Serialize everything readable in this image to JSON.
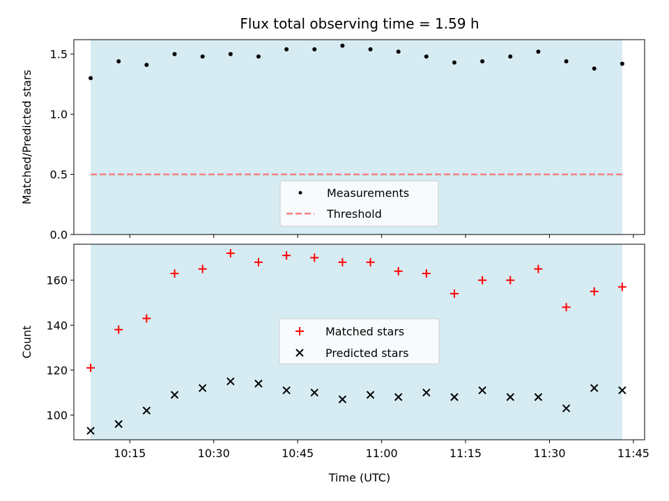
{
  "title": "Flux total observing time = 1.59 h",
  "xlabel": "Time (UTC)",
  "x_tick_labels": [
    "10:15",
    "10:30",
    "10:45",
    "11:00",
    "11:15",
    "11:30",
    "11:45"
  ],
  "chart_data": [
    {
      "type": "scatter",
      "ylabel": "Matched/Predicted stars",
      "xlim": [
        "10:05",
        "11:47"
      ],
      "ylim": [
        0,
        1.62
      ],
      "y_ticks": [
        "0.0",
        "0.5",
        "1.0",
        "1.5"
      ],
      "shaded_span": [
        "10:08",
        "11:43"
      ],
      "threshold": 0.5,
      "legend": {
        "position": "lower-center",
        "entries": [
          "Measurements",
          "Threshold"
        ]
      },
      "series": [
        {
          "name": "Measurements",
          "color": "#000000",
          "x": [
            "10:08",
            "10:13",
            "10:18",
            "10:23",
            "10:28",
            "10:33",
            "10:38",
            "10:43",
            "10:48",
            "10:53",
            "10:58",
            "11:03",
            "11:08",
            "11:13",
            "11:18",
            "11:23",
            "11:28",
            "11:33",
            "11:38",
            "11:43"
          ],
          "values": [
            1.3,
            1.44,
            1.41,
            1.5,
            1.48,
            1.5,
            1.48,
            1.54,
            1.54,
            1.57,
            1.54,
            1.52,
            1.48,
            1.43,
            1.44,
            1.48,
            1.52,
            1.44,
            1.38,
            1.42
          ]
        }
      ],
      "threshold_color": "#f08080"
    },
    {
      "type": "scatter",
      "ylabel": "Count",
      "xlim": [
        "10:05",
        "11:47"
      ],
      "ylim": [
        89,
        176
      ],
      "y_ticks": [
        "100",
        "120",
        "140",
        "160"
      ],
      "shaded_span": [
        "10:08",
        "11:43"
      ],
      "legend": {
        "position": "center",
        "entries": [
          "Matched stars",
          "Predicted stars"
        ]
      },
      "series": [
        {
          "name": "Matched stars",
          "marker": "+",
          "color": "#ff0000",
          "x": [
            "10:08",
            "10:13",
            "10:18",
            "10:23",
            "10:28",
            "10:33",
            "10:38",
            "10:43",
            "10:48",
            "10:53",
            "10:58",
            "11:03",
            "11:08",
            "11:13",
            "11:18",
            "11:23",
            "11:28",
            "11:33",
            "11:38",
            "11:43"
          ],
          "values": [
            121,
            138,
            143,
            163,
            165,
            172,
            168,
            171,
            170,
            168,
            168,
            164,
            163,
            154,
            160,
            160,
            165,
            148,
            155,
            157
          ]
        },
        {
          "name": "Predicted stars",
          "marker": "x",
          "color": "#000000",
          "x": [
            "10:08",
            "10:13",
            "10:18",
            "10:23",
            "10:28",
            "10:33",
            "10:38",
            "10:43",
            "10:48",
            "10:53",
            "10:58",
            "11:03",
            "11:08",
            "11:13",
            "11:18",
            "11:23",
            "11:28",
            "11:33",
            "11:38",
            "11:43"
          ],
          "values": [
            93,
            96,
            102,
            109,
            112,
            115,
            114,
            111,
            110,
            107,
            109,
            108,
            110,
            108,
            111,
            108,
            108,
            103,
            112,
            111
          ]
        }
      ]
    }
  ],
  "colors": {
    "shade": "#add8e6",
    "shade_alpha": 0.5
  }
}
